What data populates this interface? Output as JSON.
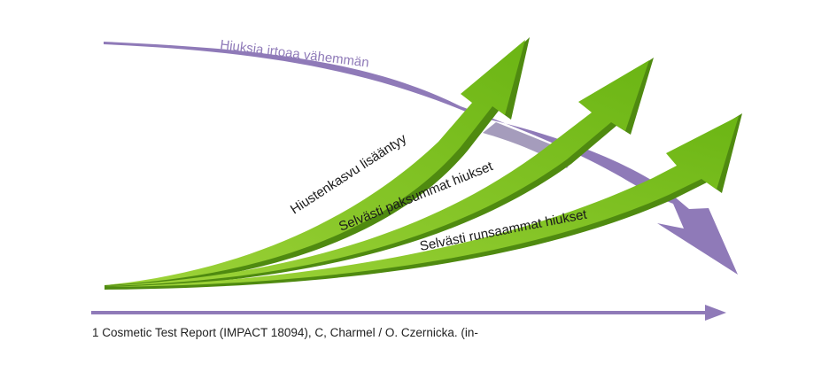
{
  "diagram": {
    "decreasing_arrow": {
      "label": "Hiuksia irtoaa vähemmän",
      "color": "#8f7ab8"
    },
    "growth_arrows": [
      {
        "label": "Hiustenkasvu lisääntyy"
      },
      {
        "label": "Selvästi paksummat hiukset"
      },
      {
        "label": "Selvästi runsaammat hiukset"
      }
    ],
    "arrow_green": "#7bbf1a",
    "arrow_green_dark": "#4f8a10",
    "label_color": "#1a1a1a",
    "axis_color": "#8f7ab8"
  },
  "footnote": "1 Cosmetic Test Report (IMPACT 18094), C, Charmel / O. Czernicka. (in-"
}
